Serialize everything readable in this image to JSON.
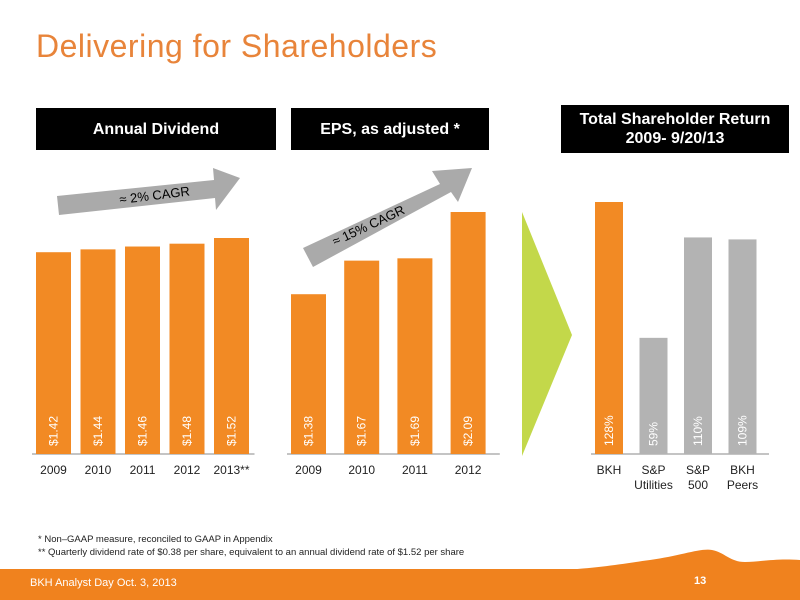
{
  "title": "Delivering for Shareholders",
  "headers": {
    "dividend": "Annual Dividend",
    "eps": "EPS, as adjusted *",
    "tsr_line1": "Total Shareholder Return",
    "tsr_line2": "2009- 9/20/13"
  },
  "arrows": {
    "dividend_label": "≈ 2% CAGR",
    "eps_label": "≈ 15% CAGR"
  },
  "footnotes": {
    "note1": "*   Non–GAAP measure, reconciled to GAAP in Appendix",
    "note2": "**  Quarterly dividend rate of  $0.38 per share, equivalent to an annual dividend rate of $1.52 per share"
  },
  "footer": {
    "left": "BKH Analyst Day  Oct. 3, 2013",
    "page": "13"
  },
  "colors": {
    "orange": "#F28A24",
    "gray": "#B3B3B3",
    "green": "#C3D84A",
    "title": "#E8843A"
  },
  "chart_data": [
    {
      "type": "bar",
      "title": "Annual Dividend",
      "categories": [
        "2009",
        "2010",
        "2011",
        "2012",
        "2013**"
      ],
      "values": [
        1.42,
        1.44,
        1.46,
        1.48,
        1.52
      ],
      "labels": [
        "$1.42",
        "$1.44",
        "$1.46",
        "$1.48",
        "$1.52"
      ],
      "ylim": [
        0,
        1.6
      ]
    },
    {
      "type": "bar",
      "title": "EPS, as adjusted *",
      "categories": [
        "2009",
        "2010",
        "2011",
        "2012"
      ],
      "values": [
        1.38,
        1.67,
        1.69,
        2.09
      ],
      "labels": [
        "$1.38",
        "$1.67",
        "$1.69",
        "$2.09"
      ],
      "ylim": [
        0,
        2.2
      ]
    },
    {
      "type": "bar",
      "title": "Total Shareholder Return 2009- 9/20/13",
      "categories": [
        "BKH",
        "S&P Utilities",
        "S&P 500",
        "BKH Peers"
      ],
      "category_lines": [
        [
          "BKH"
        ],
        [
          "S&P",
          "Utilities"
        ],
        [
          "S&P",
          "500"
        ],
        [
          "BKH",
          "Peers"
        ]
      ],
      "values": [
        128,
        59,
        110,
        109
      ],
      "labels": [
        "128%",
        "59%",
        "110%",
        "109%"
      ],
      "bar_colors": [
        "orange",
        "gray",
        "gray",
        "gray"
      ],
      "ylim": [
        0,
        135
      ]
    }
  ]
}
